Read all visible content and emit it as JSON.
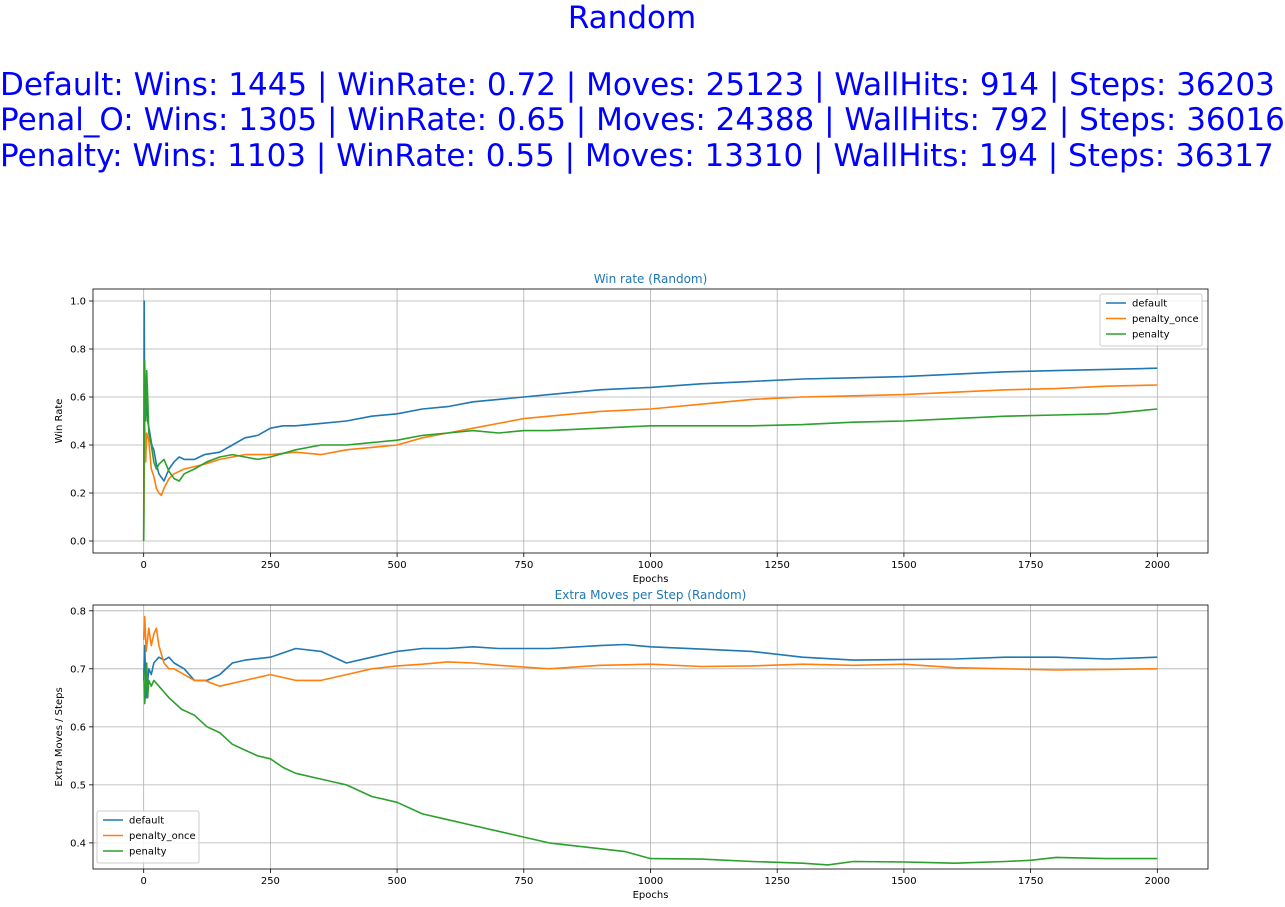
{
  "header": {
    "title": "Random",
    "lines": [
      "Default: Wins: 1445 | WinRate: 0.72 | Moves: 25123 | WallHits: 914 | Steps: 36203",
      "Penal_O: Wins: 1305 | WinRate: 0.65 | Moves: 24388 | WallHits: 792 | Steps: 36016",
      "Penalty: Wins: 1103 | WinRate: 0.55 | Moves: 13310 | WallHits: 194 | Steps: 36317"
    ],
    "color": "#0000ff"
  },
  "chart_data": [
    {
      "type": "line",
      "title": "Win rate (Random)",
      "xlabel": "Epochs",
      "ylabel": "Win Rate",
      "xlim": [
        -100,
        2100
      ],
      "ylim": [
        -0.05,
        1.05
      ],
      "xticks": [
        0,
        250,
        500,
        750,
        1000,
        1250,
        1500,
        1750,
        2000
      ],
      "yticks": [
        0.0,
        0.2,
        0.4,
        0.6,
        0.8,
        1.0
      ],
      "ytick_labels": [
        "0.0",
        "0.2",
        "0.4",
        "0.6",
        "0.8",
        "1.0"
      ],
      "grid": true,
      "legend_position": "top-right",
      "series": [
        {
          "name": "default",
          "color": "#1f77b4",
          "x": [
            0,
            1,
            2,
            3,
            5,
            8,
            12,
            16,
            20,
            25,
            30,
            40,
            50,
            60,
            70,
            80,
            100,
            120,
            150,
            175,
            200,
            225,
            250,
            275,
            300,
            350,
            400,
            450,
            500,
            550,
            600,
            650,
            700,
            750,
            800,
            900,
            1000,
            1100,
            1200,
            1300,
            1400,
            1500,
            1600,
            1700,
            1800,
            1900,
            2000
          ],
          "y": [
            0.0,
            1.0,
            0.5,
            0.67,
            0.6,
            0.5,
            0.45,
            0.4,
            0.38,
            0.32,
            0.28,
            0.25,
            0.3,
            0.33,
            0.35,
            0.34,
            0.34,
            0.36,
            0.37,
            0.4,
            0.43,
            0.44,
            0.47,
            0.48,
            0.48,
            0.49,
            0.5,
            0.52,
            0.53,
            0.55,
            0.56,
            0.58,
            0.59,
            0.6,
            0.61,
            0.63,
            0.64,
            0.655,
            0.665,
            0.675,
            0.68,
            0.685,
            0.695,
            0.705,
            0.71,
            0.715,
            0.72
          ]
        },
        {
          "name": "penalty_once",
          "color": "#ff7f0e",
          "x": [
            0,
            2,
            4,
            6,
            10,
            15,
            20,
            25,
            30,
            35,
            40,
            50,
            60,
            80,
            100,
            120,
            150,
            200,
            250,
            300,
            350,
            400,
            450,
            500,
            550,
            600,
            650,
            700,
            750,
            800,
            900,
            1000,
            1100,
            1200,
            1300,
            1400,
            1500,
            1600,
            1700,
            1800,
            1900,
            2000
          ],
          "y": [
            0.0,
            0.5,
            0.33,
            0.45,
            0.42,
            0.3,
            0.27,
            0.22,
            0.2,
            0.19,
            0.22,
            0.26,
            0.28,
            0.3,
            0.31,
            0.32,
            0.34,
            0.36,
            0.36,
            0.37,
            0.36,
            0.38,
            0.39,
            0.4,
            0.43,
            0.45,
            0.47,
            0.49,
            0.51,
            0.52,
            0.54,
            0.55,
            0.57,
            0.59,
            0.6,
            0.605,
            0.61,
            0.62,
            0.63,
            0.635,
            0.645,
            0.65
          ]
        },
        {
          "name": "penalty",
          "color": "#2ca02c",
          "x": [
            0,
            1,
            2,
            3,
            4,
            6,
            8,
            10,
            15,
            20,
            25,
            30,
            40,
            50,
            60,
            70,
            80,
            100,
            125,
            150,
            175,
            200,
            225,
            250,
            300,
            350,
            400,
            450,
            500,
            550,
            600,
            650,
            700,
            750,
            800,
            900,
            1000,
            1100,
            1200,
            1300,
            1400,
            1500,
            1600,
            1700,
            1800,
            1900,
            2000
          ],
          "y": [
            0.0,
            0.5,
            0.75,
            0.6,
            0.5,
            0.71,
            0.6,
            0.45,
            0.4,
            0.33,
            0.3,
            0.32,
            0.34,
            0.29,
            0.26,
            0.25,
            0.28,
            0.3,
            0.33,
            0.35,
            0.36,
            0.35,
            0.34,
            0.35,
            0.38,
            0.4,
            0.4,
            0.41,
            0.42,
            0.44,
            0.45,
            0.46,
            0.45,
            0.46,
            0.46,
            0.47,
            0.48,
            0.48,
            0.48,
            0.485,
            0.495,
            0.5,
            0.51,
            0.52,
            0.525,
            0.53,
            0.55
          ]
        }
      ]
    },
    {
      "type": "line",
      "title": "Extra Moves per Step (Random)",
      "xlabel": "Epochs",
      "ylabel": "Extra Moves / Steps",
      "xlim": [
        -100,
        2100
      ],
      "ylim": [
        0.355,
        0.81
      ],
      "xticks": [
        0,
        250,
        500,
        750,
        1000,
        1250,
        1500,
        1750,
        2000
      ],
      "yticks": [
        0.4,
        0.5,
        0.6,
        0.7,
        0.8
      ],
      "ytick_labels": [
        "0.4",
        "0.5",
        "0.6",
        "0.7",
        "0.8"
      ],
      "grid": true,
      "legend_position": "bottom-left",
      "series": [
        {
          "name": "default",
          "color": "#1f77b4",
          "x": [
            0,
            2,
            5,
            10,
            15,
            20,
            30,
            40,
            50,
            60,
            80,
            100,
            125,
            150,
            175,
            200,
            250,
            300,
            350,
            400,
            450,
            500,
            550,
            600,
            650,
            700,
            800,
            900,
            950,
            1000,
            1100,
            1200,
            1300,
            1400,
            1500,
            1600,
            1700,
            1800,
            1900,
            2000
          ],
          "y": [
            0.68,
            0.74,
            0.65,
            0.7,
            0.69,
            0.71,
            0.72,
            0.715,
            0.72,
            0.71,
            0.7,
            0.68,
            0.68,
            0.69,
            0.71,
            0.715,
            0.72,
            0.735,
            0.73,
            0.71,
            0.72,
            0.73,
            0.735,
            0.735,
            0.738,
            0.735,
            0.735,
            0.74,
            0.742,
            0.738,
            0.734,
            0.73,
            0.72,
            0.715,
            0.716,
            0.717,
            0.72,
            0.72,
            0.717,
            0.72
          ]
        },
        {
          "name": "penalty_once",
          "color": "#ff7f0e",
          "x": [
            0,
            2,
            5,
            10,
            15,
            20,
            25,
            30,
            40,
            50,
            60,
            80,
            100,
            120,
            150,
            200,
            250,
            300,
            350,
            400,
            450,
            500,
            550,
            600,
            650,
            700,
            800,
            900,
            1000,
            1100,
            1200,
            1300,
            1400,
            1500,
            1600,
            1700,
            1800,
            1900,
            2000
          ],
          "y": [
            0.75,
            0.79,
            0.73,
            0.77,
            0.74,
            0.76,
            0.77,
            0.74,
            0.71,
            0.7,
            0.7,
            0.69,
            0.68,
            0.68,
            0.67,
            0.68,
            0.69,
            0.68,
            0.68,
            0.69,
            0.7,
            0.705,
            0.708,
            0.712,
            0.71,
            0.706,
            0.7,
            0.706,
            0.708,
            0.704,
            0.705,
            0.708,
            0.706,
            0.708,
            0.702,
            0.7,
            0.698,
            0.699,
            0.7
          ]
        },
        {
          "name": "penalty",
          "color": "#2ca02c",
          "x": [
            0,
            2,
            4,
            6,
            8,
            10,
            15,
            20,
            30,
            40,
            50,
            75,
            100,
            125,
            150,
            175,
            200,
            225,
            250,
            275,
            300,
            350,
            400,
            450,
            500,
            550,
            600,
            650,
            700,
            750,
            800,
            850,
            900,
            950,
            1000,
            1100,
            1200,
            1300,
            1350,
            1400,
            1500,
            1550,
            1600,
            1700,
            1750,
            1800,
            1900,
            2000
          ],
          "y": [
            0.7,
            0.64,
            0.67,
            0.71,
            0.65,
            0.68,
            0.67,
            0.68,
            0.67,
            0.66,
            0.65,
            0.63,
            0.62,
            0.6,
            0.59,
            0.57,
            0.56,
            0.55,
            0.545,
            0.53,
            0.52,
            0.51,
            0.5,
            0.48,
            0.47,
            0.45,
            0.44,
            0.43,
            0.42,
            0.41,
            0.4,
            0.395,
            0.39,
            0.385,
            0.373,
            0.372,
            0.368,
            0.365,
            0.362,
            0.368,
            0.367,
            0.366,
            0.365,
            0.368,
            0.37,
            0.375,
            0.373,
            0.373
          ]
        }
      ]
    }
  ]
}
